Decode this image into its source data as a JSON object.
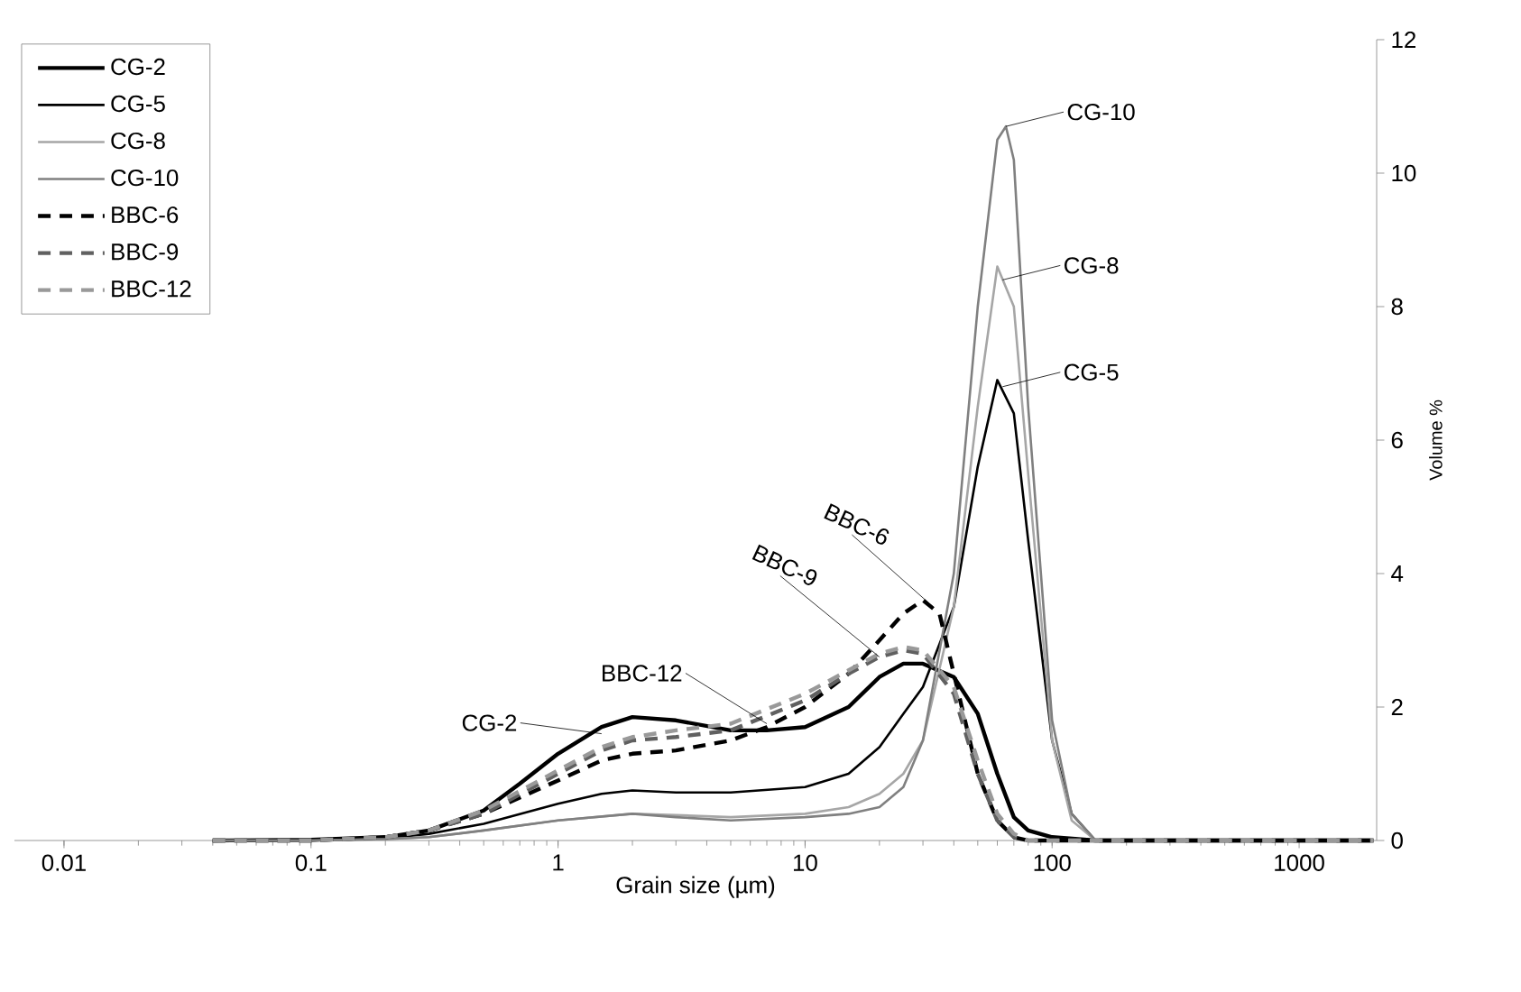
{
  "chart_data": {
    "type": "line",
    "xlabel": "Grain size (µm)",
    "ylabel": "Volume %",
    "log": "x",
    "grid": false,
    "legend": "top left",
    "marker": "none",
    "xlim": [
      0.0063,
      2060
    ],
    "ylim": [
      0,
      12
    ],
    "xticks": [
      0.01,
      0.1,
      1,
      10,
      100,
      1000
    ],
    "yticks": [
      0,
      2,
      4,
      6,
      8,
      10,
      12
    ],
    "series": [
      {
        "name": "CG-2",
        "color": "#000000",
        "line_style": "solid",
        "x": [
          0.04,
          0.1,
          0.2,
          0.3,
          0.5,
          0.7,
          1,
          1.5,
          2,
          3,
          5,
          7,
          10,
          15,
          20,
          25,
          30,
          40,
          50,
          60,
          70,
          80,
          100,
          150,
          2000
        ],
        "values": [
          0,
          0.01,
          0.05,
          0.15,
          0.45,
          0.85,
          1.3,
          1.7,
          1.85,
          1.8,
          1.65,
          1.65,
          1.7,
          2.0,
          2.45,
          2.65,
          2.65,
          2.45,
          1.9,
          1.0,
          0.35,
          0.15,
          0.05,
          0,
          0
        ]
      },
      {
        "name": "CG-5",
        "color": "#000000",
        "line_style": "solid",
        "x": [
          0.04,
          0.1,
          0.2,
          0.3,
          0.5,
          1,
          1.5,
          2,
          3,
          5,
          10,
          15,
          20,
          25,
          30,
          40,
          50,
          60,
          70,
          80,
          100,
          120,
          150,
          2000
        ],
        "values": [
          0,
          0,
          0.03,
          0.1,
          0.25,
          0.55,
          0.7,
          0.75,
          0.72,
          0.72,
          0.8,
          1.0,
          1.4,
          1.9,
          2.3,
          3.5,
          5.6,
          6.9,
          6.4,
          4.5,
          1.5,
          0.4,
          0,
          0
        ]
      },
      {
        "name": "CG-8",
        "color": "#a6a6a6",
        "line_style": "solid",
        "x": [
          0.04,
          0.1,
          0.2,
          0.3,
          0.5,
          1,
          2,
          3,
          5,
          10,
          15,
          20,
          25,
          30,
          40,
          50,
          60,
          70,
          80,
          100,
          120,
          150,
          2000
        ],
        "values": [
          0,
          0,
          0.02,
          0.05,
          0.15,
          0.3,
          0.4,
          0.38,
          0.35,
          0.4,
          0.5,
          0.7,
          1.0,
          1.5,
          3.5,
          6.5,
          8.6,
          8.0,
          5.5,
          1.5,
          0.3,
          0,
          0
        ]
      },
      {
        "name": "CG-10",
        "color": "#808080",
        "line_style": "solid",
        "x": [
          0.04,
          0.1,
          0.2,
          0.3,
          0.5,
          1,
          2,
          3,
          5,
          10,
          15,
          20,
          25,
          30,
          40,
          50,
          60,
          65,
          70,
          80,
          100,
          120,
          150,
          2000
        ],
        "values": [
          0,
          0,
          0.02,
          0.05,
          0.15,
          0.3,
          0.4,
          0.35,
          0.3,
          0.35,
          0.4,
          0.5,
          0.8,
          1.5,
          4.0,
          8.0,
          10.5,
          10.7,
          10.2,
          6.5,
          1.8,
          0.4,
          0,
          0
        ]
      },
      {
        "name": "BBC-6",
        "color": "#000000",
        "line_style": "dashed",
        "x": [
          0.04,
          0.1,
          0.2,
          0.3,
          0.5,
          1,
          1.5,
          2,
          3,
          5,
          7,
          10,
          15,
          20,
          25,
          30,
          35,
          40,
          50,
          60,
          70,
          80,
          2000
        ],
        "values": [
          0,
          0,
          0.05,
          0.15,
          0.4,
          0.9,
          1.2,
          1.3,
          1.35,
          1.5,
          1.7,
          2.0,
          2.5,
          3.0,
          3.4,
          3.6,
          3.4,
          2.5,
          1.0,
          0.3,
          0.05,
          0,
          0
        ]
      },
      {
        "name": "BBC-9",
        "color": "#606060",
        "line_style": "dashed",
        "x": [
          0.04,
          0.1,
          0.2,
          0.3,
          0.5,
          1,
          1.5,
          2,
          3,
          5,
          10,
          15,
          20,
          25,
          30,
          40,
          50,
          60,
          70,
          80,
          2000
        ],
        "values": [
          0,
          0,
          0.05,
          0.15,
          0.4,
          1.0,
          1.35,
          1.5,
          1.55,
          1.65,
          2.1,
          2.5,
          2.75,
          2.85,
          2.8,
          2.2,
          1.0,
          0.3,
          0.05,
          0,
          0
        ]
      },
      {
        "name": "BBC-12",
        "color": "#999999",
        "line_style": "dashed",
        "x": [
          0.04,
          0.1,
          0.2,
          0.3,
          0.5,
          1,
          1.5,
          2,
          3,
          5,
          10,
          15,
          20,
          25,
          30,
          40,
          50,
          60,
          70,
          80,
          2000
        ],
        "values": [
          0,
          0,
          0.05,
          0.15,
          0.45,
          1.05,
          1.4,
          1.55,
          1.65,
          1.75,
          2.2,
          2.55,
          2.8,
          2.9,
          2.85,
          2.3,
          1.2,
          0.4,
          0.1,
          0,
          0
        ]
      }
    ],
    "annotations": [
      {
        "text": "CG-10",
        "x": 65,
        "y": 10.7
      },
      {
        "text": "CG-8",
        "x": 63,
        "y": 8.4
      },
      {
        "text": "CG-5",
        "x": 63,
        "y": 6.8
      },
      {
        "text": "BBC-6",
        "x": 33,
        "y": 3.5
      },
      {
        "text": "BBC-9",
        "x": 20,
        "y": 2.75
      },
      {
        "text": "BBC-12",
        "x": 7,
        "y": 1.75
      },
      {
        "text": "CG-2",
        "x": 1.5,
        "y": 1.6
      }
    ]
  }
}
